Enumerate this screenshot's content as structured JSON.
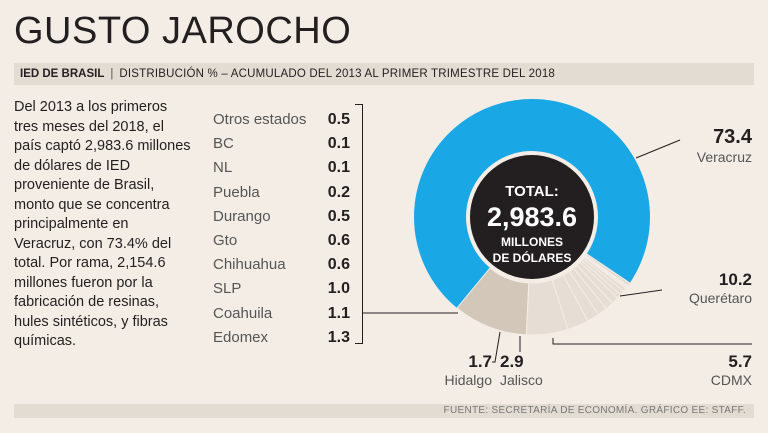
{
  "header": {
    "title": "GUSTO JAROCHO",
    "subtitle_bold": "IED DE BRASIL",
    "subtitle_sep": "|",
    "subtitle_desc": "DISTRIBUCIÓN % – ACUMULADO DEL 2013 AL PRIMER TRIMESTRE DEL 2018"
  },
  "body_text": "Del 2013 a los primeros tres meses del 2018, el país captó 2,983.6 millones de dólares de IED proveniente de Brasil, monto que se concentra principalmente en Veracruz, con 73.4% del total. Por rama, 2,154.6 millones fueron por la fabricación de resinas, hules sintéticos, y fibras químicas.",
  "center": {
    "line1": "TOTAL:",
    "line2": "2,983.6",
    "line3": "MILLONES",
    "line4": "DE DÓLARES"
  },
  "footer": {
    "source": "FUENTE: SECRETARÍA DE ECONOMÍA. GRÁFICO EE: STAFF."
  },
  "colors": {
    "veracruz": "#1aa7e6",
    "queretaro": "#d2c7b9",
    "others": "#e6ded4",
    "center": "#231f20",
    "background": "#f3ede6"
  },
  "chart_data": {
    "type": "pie",
    "title": "GUSTO JAROCHO",
    "unit": "%",
    "total_label": "2,983.6",
    "slices": [
      {
        "name": "Veracruz",
        "value": 73.4,
        "label": "73.4"
      },
      {
        "name": "Querétaro",
        "value": 10.2,
        "label": "10.2"
      },
      {
        "name": "CDMX",
        "value": 5.7,
        "label": "5.7"
      },
      {
        "name": "Jalisco",
        "value": 2.9,
        "label": "2.9"
      },
      {
        "name": "Hidalgo",
        "value": 1.7,
        "label": "1.7"
      },
      {
        "name": "Edomex",
        "value": 1.3,
        "label": "1.3"
      },
      {
        "name": "Coahuila",
        "value": 1.1,
        "label": "1.1"
      },
      {
        "name": "SLP",
        "value": 1.0,
        "label": "1.0"
      },
      {
        "name": "Chihuahua",
        "value": 0.6,
        "label": "0.6"
      },
      {
        "name": "Gto",
        "value": 0.6,
        "label": "0.6"
      },
      {
        "name": "Durango",
        "value": 0.5,
        "label": "0.5"
      },
      {
        "name": "Puebla",
        "value": 0.2,
        "label": "0.2"
      },
      {
        "name": "NL",
        "value": 0.1,
        "label": "0.1"
      },
      {
        "name": "BC",
        "value": 0.1,
        "label": "0.1"
      },
      {
        "name": "Otros estados",
        "value": 0.5,
        "label": "0.5"
      }
    ],
    "small_list": [
      {
        "name": "Otros estados",
        "label": "0.5"
      },
      {
        "name": "BC",
        "label": "0.1"
      },
      {
        "name": "NL",
        "label": "0.1"
      },
      {
        "name": "Puebla",
        "label": "0.2"
      },
      {
        "name": "Durango",
        "label": "0.5"
      },
      {
        "name": "Gto",
        "label": "0.6"
      },
      {
        "name": "Chihuahua",
        "label": "0.6"
      },
      {
        "name": "SLP",
        "label": "1.0"
      },
      {
        "name": "Coahuila",
        "label": "1.1"
      },
      {
        "name": "Edomex",
        "label": "1.3"
      }
    ],
    "external_labels": [
      {
        "name": "Veracruz",
        "label": "73.4"
      },
      {
        "name": "Querétaro",
        "label": "10.2"
      },
      {
        "name": "CDMX",
        "label": "5.7"
      },
      {
        "name": "Jalisco",
        "label": "2.9"
      },
      {
        "name": "Hidalgo",
        "label": "1.7"
      }
    ]
  }
}
